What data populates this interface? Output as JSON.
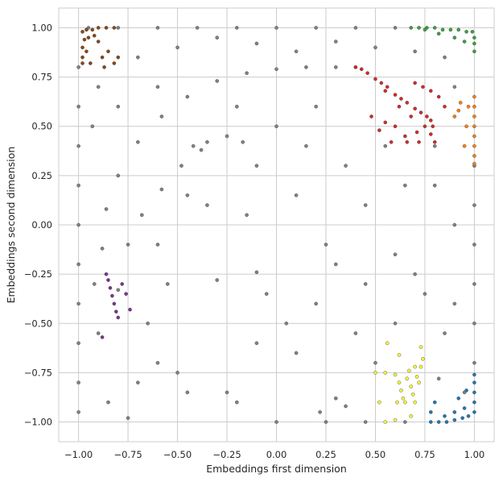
{
  "chart_data": {
    "type": "scatter",
    "title": "",
    "xlabel": "Embeddings first dimension",
    "ylabel": "Embeddings second dimension",
    "xlim": [
      -1.1,
      1.1
    ],
    "ylim": [
      -1.1,
      1.1
    ],
    "xticks": [
      -1.0,
      -0.75,
      -0.5,
      -0.25,
      0.0,
      0.25,
      0.5,
      0.75,
      1.0
    ],
    "yticks": [
      -1.0,
      -0.75,
      -0.5,
      -0.25,
      0.0,
      0.25,
      0.5,
      0.75,
      1.0
    ],
    "xtick_labels": [
      "−1.00",
      "−0.75",
      "−0.50",
      "−0.25",
      "0.00",
      "0.25",
      "0.50",
      "0.75",
      "1.00"
    ],
    "ytick_labels": [
      "−1.00",
      "−0.75",
      "−0.50",
      "−0.25",
      "0.00",
      "0.25",
      "0.50",
      "0.75",
      "1.00"
    ],
    "grid": true,
    "background": "#ffffff",
    "grid_color": "#cccccc",
    "series": [
      {
        "color": "#808080",
        "points": [
          [
            -1.0,
            -0.95
          ],
          [
            -1.0,
            -0.8
          ],
          [
            -1.0,
            -0.6
          ],
          [
            -1.0,
            -0.4
          ],
          [
            -1.0,
            -0.2
          ],
          [
            -1.0,
            0.0
          ],
          [
            -1.0,
            0.2
          ],
          [
            -1.0,
            0.4
          ],
          [
            -1.0,
            0.6
          ],
          [
            -1.0,
            0.8
          ],
          [
            -0.95,
            1.0
          ],
          [
            -0.8,
            1.0
          ],
          [
            -0.6,
            1.0
          ],
          [
            -0.4,
            1.0
          ],
          [
            -0.2,
            1.0
          ],
          [
            0.0,
            1.0
          ],
          [
            0.2,
            1.0
          ],
          [
            0.4,
            1.0
          ],
          [
            0.6,
            1.0
          ],
          [
            1.0,
            0.3
          ],
          [
            1.0,
            0.1
          ],
          [
            1.0,
            -0.1
          ],
          [
            1.0,
            -0.3
          ],
          [
            1.0,
            -0.5
          ],
          [
            1.0,
            -0.7
          ],
          [
            0.65,
            -1.0
          ],
          [
            0.45,
            -1.0
          ],
          [
            0.25,
            -1.0
          ],
          [
            0.0,
            -1.0
          ],
          [
            -0.88,
            -0.12
          ],
          [
            -0.86,
            0.08
          ],
          [
            -0.8,
            0.25
          ],
          [
            -0.7,
            0.42
          ],
          [
            -0.58,
            0.55
          ],
          [
            -0.45,
            0.65
          ],
          [
            -0.3,
            0.73
          ],
          [
            -0.15,
            0.77
          ],
          [
            0.0,
            0.79
          ],
          [
            0.15,
            0.8
          ],
          [
            0.3,
            0.8
          ],
          [
            0.4,
            0.8
          ],
          [
            -0.8,
            -0.33
          ],
          [
            -0.75,
            -0.1
          ],
          [
            -0.68,
            0.05
          ],
          [
            -0.58,
            0.18
          ],
          [
            -0.48,
            0.3
          ],
          [
            -0.38,
            0.38
          ],
          [
            -0.42,
            0.4
          ],
          [
            -0.35,
            0.42
          ],
          [
            -0.25,
            0.45
          ],
          [
            -0.17,
            0.42
          ],
          [
            -0.1,
            0.3
          ],
          [
            -0.3,
            -0.28
          ],
          [
            -0.1,
            -0.24
          ],
          [
            0.05,
            -0.5
          ],
          [
            0.1,
            -0.65
          ],
          [
            0.3,
            -0.88
          ],
          [
            0.35,
            -0.92
          ],
          [
            0.22,
            -0.95
          ],
          [
            -0.5,
            -0.75
          ],
          [
            -0.45,
            -0.85
          ],
          [
            -0.6,
            -0.7
          ],
          [
            -0.2,
            -0.9
          ],
          [
            -0.1,
            -0.6
          ],
          [
            0.2,
            -0.4
          ],
          [
            0.25,
            -0.1
          ],
          [
            -0.6,
            -0.1
          ],
          [
            -0.35,
            0.1
          ],
          [
            0.1,
            0.15
          ],
          [
            0.15,
            0.4
          ],
          [
            0.35,
            0.3
          ],
          [
            0.45,
            0.1
          ],
          [
            0.55,
            0.4
          ],
          [
            0.8,
            0.2
          ],
          [
            0.9,
            0.0
          ],
          [
            0.75,
            -0.35
          ],
          [
            0.6,
            -0.5
          ],
          [
            0.85,
            -0.55
          ],
          [
            0.5,
            -0.7
          ],
          [
            0.4,
            -0.55
          ],
          [
            0.3,
            -0.2
          ],
          [
            0.45,
            -0.3
          ],
          [
            0.6,
            -0.15
          ],
          [
            -0.7,
            -0.8
          ],
          [
            -0.85,
            -0.9
          ],
          [
            -0.75,
            -0.98
          ],
          [
            -0.25,
            -0.85
          ],
          [
            -0.05,
            -0.35
          ],
          [
            -0.15,
            0.05
          ],
          [
            -0.45,
            0.15
          ],
          [
            -0.55,
            -0.3
          ],
          [
            -0.65,
            -0.5
          ],
          [
            -0.9,
            -0.55
          ],
          [
            -0.92,
            -0.3
          ],
          [
            -0.93,
            0.5
          ],
          [
            -0.9,
            0.7
          ],
          [
            -0.7,
            0.85
          ],
          [
            -0.5,
            0.9
          ],
          [
            -0.3,
            0.95
          ],
          [
            -0.1,
            0.92
          ],
          [
            0.1,
            0.88
          ],
          [
            0.3,
            0.93
          ],
          [
            0.5,
            0.9
          ],
          [
            0.7,
            0.88
          ],
          [
            0.85,
            0.85
          ],
          [
            0.9,
            0.7
          ],
          [
            0.8,
            0.4
          ],
          [
            -0.6,
            0.7
          ],
          [
            -0.8,
            0.6
          ],
          [
            0.65,
            0.2
          ],
          [
            0.2,
            0.6
          ],
          [
            0.0,
            0.5
          ],
          [
            -0.2,
            0.6
          ],
          [
            0.7,
            -0.25
          ],
          [
            0.9,
            -0.4
          ],
          [
            0.95,
            -0.85
          ],
          [
            0.82,
            -0.78
          ]
        ]
      },
      {
        "color": "#8b4513",
        "points": [
          [
            -0.98,
            0.98
          ],
          [
            -0.96,
            0.99
          ],
          [
            -0.93,
            0.99
          ],
          [
            -0.9,
            1.0
          ],
          [
            -0.86,
            1.0
          ],
          [
            -0.82,
            1.0
          ],
          [
            -0.97,
            0.94
          ],
          [
            -0.98,
            0.9
          ],
          [
            -0.98,
            0.85
          ],
          [
            -0.98,
            0.82
          ],
          [
            -0.95,
            0.95
          ],
          [
            -0.92,
            0.96
          ],
          [
            -0.9,
            0.93
          ],
          [
            -0.88,
            0.85
          ],
          [
            -0.85,
            0.88
          ],
          [
            -0.82,
            0.82
          ],
          [
            -0.8,
            0.85
          ],
          [
            -0.87,
            0.8
          ],
          [
            -0.94,
            0.82
          ],
          [
            -0.96,
            0.88
          ]
        ]
      },
      {
        "color": "#3ca03c",
        "points": [
          [
            0.68,
            1.0
          ],
          [
            0.72,
            1.0
          ],
          [
            0.76,
            1.0
          ],
          [
            0.8,
            1.0
          ],
          [
            0.84,
            0.99
          ],
          [
            0.88,
            0.99
          ],
          [
            0.92,
            0.99
          ],
          [
            0.96,
            0.98
          ],
          [
            0.99,
            0.98
          ],
          [
            1.0,
            0.95
          ],
          [
            1.0,
            0.92
          ],
          [
            1.0,
            0.88
          ],
          [
            0.9,
            0.95
          ],
          [
            0.82,
            0.97
          ],
          [
            0.75,
            0.99
          ],
          [
            0.95,
            0.93
          ]
        ]
      },
      {
        "color": "#d62728",
        "points": [
          [
            0.4,
            0.8
          ],
          [
            0.43,
            0.79
          ],
          [
            0.46,
            0.77
          ],
          [
            0.5,
            0.74
          ],
          [
            0.53,
            0.72
          ],
          [
            0.56,
            0.7
          ],
          [
            0.6,
            0.66
          ],
          [
            0.63,
            0.64
          ],
          [
            0.66,
            0.62
          ],
          [
            0.7,
            0.59
          ],
          [
            0.73,
            0.57
          ],
          [
            0.76,
            0.55
          ],
          [
            0.78,
            0.53
          ],
          [
            0.79,
            0.5
          ],
          [
            0.55,
            0.68
          ],
          [
            0.62,
            0.6
          ],
          [
            0.68,
            0.55
          ],
          [
            0.75,
            0.5
          ],
          [
            0.78,
            0.46
          ],
          [
            0.71,
            0.47
          ],
          [
            0.65,
            0.45
          ],
          [
            0.6,
            0.5
          ],
          [
            0.55,
            0.52
          ],
          [
            0.52,
            0.48
          ],
          [
            0.58,
            0.42
          ],
          [
            0.66,
            0.42
          ],
          [
            0.72,
            0.42
          ],
          [
            0.8,
            0.42
          ],
          [
            0.48,
            0.55
          ],
          [
            0.85,
            0.6
          ],
          [
            0.82,
            0.65
          ],
          [
            0.78,
            0.68
          ],
          [
            0.74,
            0.7
          ],
          [
            0.7,
            0.72
          ]
        ]
      },
      {
        "color": "#ff7f0e",
        "points": [
          [
            1.0,
            0.65
          ],
          [
            1.0,
            0.6
          ],
          [
            1.0,
            0.55
          ],
          [
            1.0,
            0.5
          ],
          [
            1.0,
            0.45
          ],
          [
            1.0,
            0.4
          ],
          [
            1.0,
            0.35
          ],
          [
            1.0,
            0.31
          ],
          [
            0.97,
            0.6
          ],
          [
            0.93,
            0.62
          ],
          [
            0.9,
            0.55
          ],
          [
            0.95,
            0.4
          ],
          [
            0.96,
            0.5
          ],
          [
            0.92,
            0.58
          ]
        ]
      },
      {
        "color": "#7b3294",
        "points": [
          [
            -0.86,
            -0.25
          ],
          [
            -0.85,
            -0.28
          ],
          [
            -0.84,
            -0.32
          ],
          [
            -0.83,
            -0.36
          ],
          [
            -0.82,
            -0.4
          ],
          [
            -0.81,
            -0.44
          ],
          [
            -0.8,
            -0.47
          ],
          [
            -0.78,
            -0.3
          ],
          [
            -0.76,
            -0.35
          ],
          [
            -0.74,
            -0.43
          ],
          [
            -0.88,
            -0.57
          ]
        ]
      },
      {
        "color": "#f5f536",
        "points": [
          [
            0.6,
            -0.76
          ],
          [
            0.62,
            -0.8
          ],
          [
            0.63,
            -0.84
          ],
          [
            0.64,
            -0.88
          ],
          [
            0.66,
            -0.78
          ],
          [
            0.67,
            -0.74
          ],
          [
            0.68,
            -0.82
          ],
          [
            0.69,
            -0.86
          ],
          [
            0.7,
            -0.72
          ],
          [
            0.71,
            -0.77
          ],
          [
            0.72,
            -0.8
          ],
          [
            0.73,
            -0.72
          ],
          [
            0.61,
            -0.9
          ],
          [
            0.65,
            -0.9
          ],
          [
            0.7,
            -0.9
          ],
          [
            0.62,
            -0.66
          ],
          [
            0.55,
            -0.75
          ],
          [
            0.52,
            -0.9
          ],
          [
            0.5,
            -0.75
          ],
          [
            0.74,
            -0.68
          ],
          [
            0.73,
            -0.62
          ],
          [
            0.56,
            -0.6
          ],
          [
            0.6,
            -0.99
          ],
          [
            0.55,
            -1.0
          ],
          [
            0.68,
            -0.97
          ]
        ]
      },
      {
        "color": "#1f77b4",
        "points": [
          [
            0.78,
            -1.0
          ],
          [
            0.82,
            -1.0
          ],
          [
            0.86,
            -1.0
          ],
          [
            0.9,
            -0.99
          ],
          [
            0.94,
            -0.98
          ],
          [
            0.97,
            -0.97
          ],
          [
            1.0,
            -0.95
          ],
          [
            1.0,
            -0.9
          ],
          [
            1.0,
            -0.85
          ],
          [
            1.0,
            -0.8
          ],
          [
            1.0,
            -0.76
          ],
          [
            0.95,
            -0.93
          ],
          [
            0.9,
            -0.95
          ],
          [
            0.85,
            -0.97
          ],
          [
            0.8,
            -0.9
          ],
          [
            0.78,
            -0.95
          ],
          [
            0.96,
            -0.84
          ],
          [
            0.92,
            -0.88
          ]
        ]
      }
    ]
  }
}
